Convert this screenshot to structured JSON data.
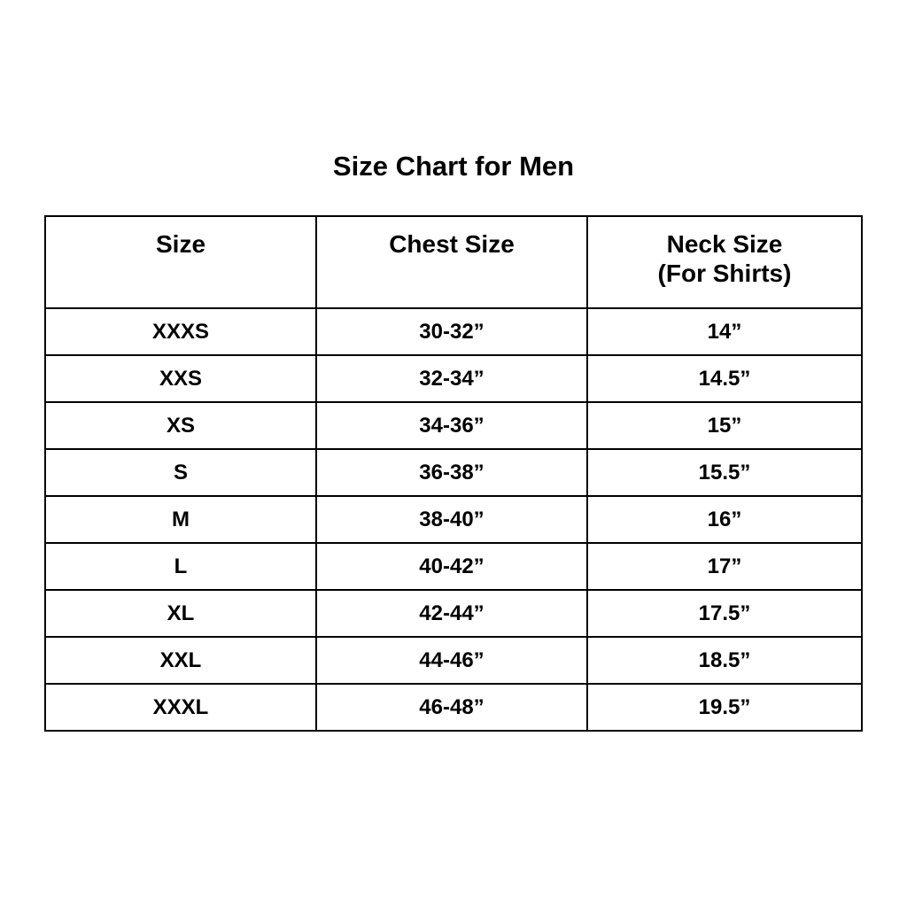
{
  "page": {
    "title": "Size Chart for Men"
  },
  "colors": {
    "background": "#ffffff",
    "text": "#000000",
    "border": "#000000"
  },
  "table": {
    "header": {
      "size_label": "Size",
      "chest_label": "Chest Size",
      "neck_label_line1": "Neck Size",
      "neck_label_line2": "(For Shirts)"
    },
    "rows": [
      {
        "size": "XXXS",
        "chest": "30-32”",
        "neck": "14”"
      },
      {
        "size": "XXS",
        "chest": "32-34”",
        "neck": "14.5”"
      },
      {
        "size": "XS",
        "chest": "34-36”",
        "neck": "15”"
      },
      {
        "size": "S",
        "chest": "36-38”",
        "neck": "15.5”"
      },
      {
        "size": "M",
        "chest": "38-40”",
        "neck": "16”"
      },
      {
        "size": "L",
        "chest": "40-42”",
        "neck": "17”"
      },
      {
        "size": "XL",
        "chest": "42-44”",
        "neck": "17.5”"
      },
      {
        "size": "XXL",
        "chest": "44-46”",
        "neck": "18.5”"
      },
      {
        "size": "XXXL",
        "chest": "46-48”",
        "neck": "19.5”"
      }
    ]
  },
  "chart_data": {
    "type": "table",
    "title": "Size Chart for Men",
    "columns": [
      "Size",
      "Chest Size",
      "Neck Size (For Shirts)"
    ],
    "rows": [
      [
        "XXXS",
        "30-32”",
        "14”"
      ],
      [
        "XXS",
        "32-34”",
        "14.5”"
      ],
      [
        "XS",
        "34-36”",
        "15”"
      ],
      [
        "S",
        "36-38”",
        "15.5”"
      ],
      [
        "M",
        "38-40”",
        "16”"
      ],
      [
        "L",
        "40-42”",
        "17”"
      ],
      [
        "XL",
        "42-44”",
        "17.5”"
      ],
      [
        "XXL",
        "44-46”",
        "18.5”"
      ],
      [
        "XXXL",
        "46-48”",
        "19.5”"
      ]
    ],
    "layout": {
      "grid": true,
      "text_align": "center",
      "font_weight": "bold"
    }
  }
}
